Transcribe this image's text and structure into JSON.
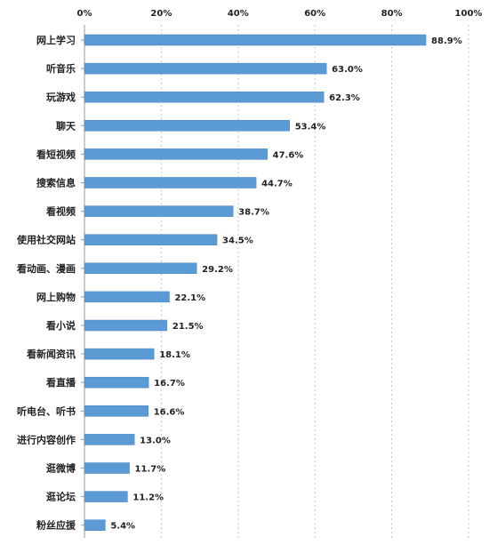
{
  "chart_data": {
    "type": "bar",
    "orientation": "horizontal",
    "title": "",
    "xlabel": "",
    "ylabel": "",
    "xlim": [
      0,
      100
    ],
    "x_ticks": [
      "0%",
      "20%",
      "40%",
      "60%",
      "80%",
      "100%"
    ],
    "grid": true,
    "legend": "none",
    "bar_color": "#5b9bd5",
    "categories": [
      "网上学习",
      "听音乐",
      "玩游戏",
      "聊天",
      "看短视频",
      "搜索信息",
      "看视频",
      "使用社交网站",
      "看动画、漫画",
      "网上购物",
      "看小说",
      "看新闻资讯",
      "看直播",
      "听电台、听书",
      "进行内容创作",
      "逛微博",
      "逛论坛",
      "粉丝应援"
    ],
    "values": [
      88.9,
      63.0,
      62.3,
      53.4,
      47.6,
      44.7,
      38.7,
      34.5,
      29.2,
      22.1,
      21.5,
      18.1,
      16.7,
      16.6,
      13.0,
      11.7,
      11.2,
      5.4
    ],
    "value_labels": [
      "88.9%",
      "63.0%",
      "62.3%",
      "53.4%",
      "47.6%",
      "44.7%",
      "38.7%",
      "34.5%",
      "29.2%",
      "22.1%",
      "21.5%",
      "18.1%",
      "16.7%",
      "16.6%",
      "13.0%",
      "11.7%",
      "11.2%",
      "5.4%"
    ]
  }
}
